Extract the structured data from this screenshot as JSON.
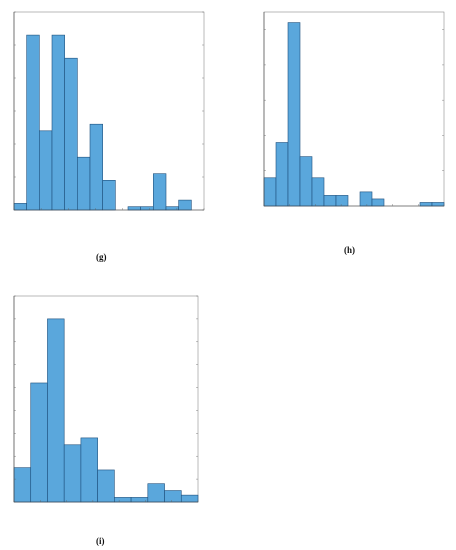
{
  "chart_data": [
    {
      "type": "bar",
      "title": "",
      "caption": "(g)",
      "xlabel": "",
      "ylabel": "",
      "bins": [
        [
          0.0,
          0.5
        ],
        [
          0.5,
          1.0
        ],
        [
          1.0,
          1.5
        ],
        [
          1.5,
          2.0
        ],
        [
          2.0,
          2.5
        ],
        [
          2.5,
          3.0
        ],
        [
          3.0,
          3.5
        ],
        [
          3.5,
          4.0
        ],
        [
          4.0,
          4.5
        ],
        [
          4.5,
          5.0
        ],
        [
          5.0,
          5.5
        ],
        [
          5.5,
          6.0
        ],
        [
          6.0,
          6.5
        ],
        [
          6.5,
          7.0
        ],
        [
          7.0,
          7.5
        ]
      ],
      "values": [
        2,
        53,
        24,
        53,
        46,
        16,
        26,
        9,
        0,
        1,
        1,
        11,
        1,
        3,
        0
      ],
      "ylim": [
        0,
        60
      ],
      "xlim": [
        0,
        7.5
      ]
    },
    {
      "type": "bar",
      "title": "",
      "caption": "(h)",
      "xlabel": "",
      "ylabel": "",
      "bins": [
        [
          0.0,
          0.5
        ],
        [
          0.5,
          1.0
        ],
        [
          1.0,
          1.5
        ],
        [
          1.5,
          2.0
        ],
        [
          2.0,
          2.5
        ],
        [
          2.5,
          3.0
        ],
        [
          3.0,
          3.5
        ],
        [
          3.5,
          4.0
        ],
        [
          4.0,
          4.5
        ],
        [
          4.5,
          5.0
        ],
        [
          5.0,
          5.5
        ],
        [
          5.5,
          6.0
        ],
        [
          6.0,
          6.5
        ],
        [
          6.5,
          7.0
        ],
        [
          7.0,
          7.5
        ]
      ],
      "values": [
        8,
        18,
        52,
        14,
        8,
        3,
        3,
        0,
        4,
        2,
        0,
        0,
        0,
        1,
        1
      ],
      "ylim": [
        0,
        55
      ],
      "xlim": [
        0,
        7.5
      ]
    },
    {
      "type": "bar",
      "title": "",
      "caption": "(i)",
      "xlabel": "",
      "ylabel": "",
      "bins": [
        [
          0,
          1
        ],
        [
          1,
          2
        ],
        [
          2,
          3
        ],
        [
          3,
          4
        ],
        [
          4,
          5
        ],
        [
          5,
          6
        ],
        [
          6,
          7
        ],
        [
          7,
          8
        ],
        [
          8,
          9
        ],
        [
          9,
          10
        ],
        [
          10,
          11
        ]
      ],
      "values": [
        15,
        52,
        80,
        25,
        28,
        14,
        2,
        2,
        8,
        5,
        3
      ],
      "ylim": [
        0,
        90
      ],
      "xlim": [
        0,
        11
      ]
    }
  ]
}
